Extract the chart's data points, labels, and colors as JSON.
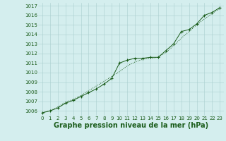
{
  "xlabel": "Graphe pression niveau de la mer (hPa)",
  "x_values": [
    0,
    1,
    2,
    3,
    4,
    5,
    6,
    7,
    8,
    9,
    10,
    11,
    12,
    13,
    14,
    15,
    16,
    17,
    18,
    19,
    20,
    21,
    22,
    23
  ],
  "y_measured": [
    1005.8,
    1006.0,
    1006.3,
    1006.8,
    1007.1,
    1007.5,
    1007.9,
    1008.3,
    1008.8,
    1009.4,
    1011.0,
    1011.3,
    1011.5,
    1011.5,
    1011.6,
    1011.6,
    1012.3,
    1013.0,
    1014.3,
    1014.5,
    1015.1,
    1016.0,
    1016.3,
    1016.8
  ],
  "y_smooth": [
    1005.8,
    1006.0,
    1006.4,
    1006.9,
    1007.2,
    1007.6,
    1008.1,
    1008.6,
    1009.1,
    1009.6,
    1010.1,
    1010.7,
    1011.1,
    1011.4,
    1011.5,
    1011.6,
    1012.1,
    1012.8,
    1013.6,
    1014.3,
    1015.0,
    1015.6,
    1016.2,
    1016.7
  ],
  "ylim": [
    1005.5,
    1017.3
  ],
  "xlim": [
    -0.5,
    23.5
  ],
  "yticks": [
    1006,
    1007,
    1008,
    1009,
    1010,
    1011,
    1012,
    1013,
    1014,
    1015,
    1016,
    1017
  ],
  "xticks": [
    0,
    1,
    2,
    3,
    4,
    5,
    6,
    7,
    8,
    9,
    10,
    11,
    12,
    13,
    14,
    15,
    16,
    17,
    18,
    19,
    20,
    21,
    22,
    23
  ],
  "line_color": "#1a5c1a",
  "marker_color": "#1a5c1a",
  "bg_color": "#d4eeee",
  "grid_color": "#aacece",
  "xlabel_color": "#1a5c1a",
  "tick_fontsize": 5.0,
  "xlabel_fontsize": 7.0,
  "marker": "P",
  "marker_size": 2.5,
  "linewidth": 0.7
}
